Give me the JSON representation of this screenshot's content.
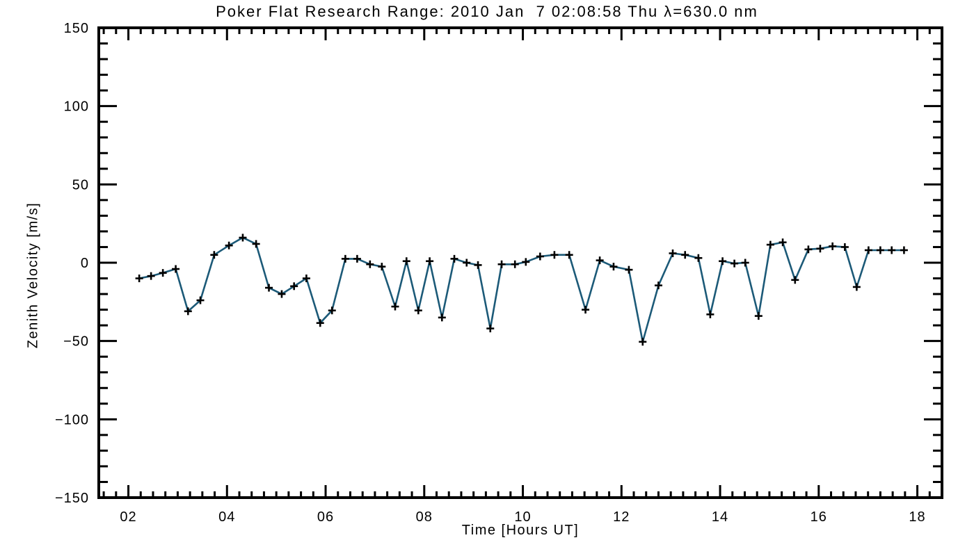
{
  "chart_data": {
    "type": "line",
    "title": "Poker Flat Research Range: 2010 Jan  7 02:08:58 Thu λ=630.0 nm",
    "xlabel": "Time [Hours UT]",
    "ylabel": "Zenith Velocity [m/s]",
    "xlim": [
      1.4,
      18.5
    ],
    "ylim": [
      -150,
      150
    ],
    "x_major_ticks": [
      2,
      4,
      6,
      8,
      10,
      12,
      14,
      16,
      18
    ],
    "x_tick_labels": [
      "02",
      "04",
      "06",
      "08",
      "10",
      "12",
      "14",
      "16",
      "18"
    ],
    "x_minor_step": 0.25,
    "y_major_ticks": [
      -150,
      -100,
      -50,
      0,
      50,
      100,
      150
    ],
    "y_tick_labels": [
      "−150",
      "−100",
      "−50",
      "0",
      "50",
      "100",
      "150"
    ],
    "y_minor_step": 10,
    "grid": false,
    "legend": "none",
    "marker": "plus",
    "line_color": "#1c5a78",
    "marker_color": "#000000",
    "axis_color": "#000000",
    "background": "#ffffff",
    "x": [
      2.22,
      2.46,
      2.7,
      2.96,
      3.21,
      3.46,
      3.74,
      4.04,
      4.32,
      4.59,
      4.85,
      5.11,
      5.36,
      5.61,
      5.89,
      6.13,
      6.4,
      6.64,
      6.9,
      7.14,
      7.41,
      7.64,
      7.88,
      8.11,
      8.36,
      8.61,
      8.86,
      9.09,
      9.34,
      9.57,
      9.84,
      10.06,
      10.35,
      10.64,
      10.94,
      11.27,
      11.56,
      11.84,
      12.15,
      12.43,
      12.75,
      13.04,
      13.29,
      13.56,
      13.8,
      14.05,
      14.29,
      14.51,
      14.78,
      15.02,
      15.27,
      15.52,
      15.79,
      16.03,
      16.28,
      16.53,
      16.77,
      17.01,
      17.25,
      17.48,
      17.73
    ],
    "y": [
      -10,
      -8.5,
      -6.5,
      -4,
      -31,
      -24,
      5,
      11,
      16,
      12,
      -16,
      -20,
      -15,
      -10,
      -38.5,
      -30.5,
      2.5,
      2.5,
      -1,
      -2.5,
      -28,
      1,
      -30.5,
      1,
      -35,
      2.5,
      0,
      -1.5,
      -42,
      -1,
      -1,
      0.5,
      4,
      5,
      5,
      -30,
      1.5,
      -2.5,
      -4.5,
      -50.5,
      -14.5,
      6,
      5,
      3,
      -33,
      1,
      -0.5,
      0,
      -34,
      11.5,
      13,
      -11,
      8.5,
      9,
      10.5,
      10,
      -15.5,
      8,
      8,
      8,
      8
    ]
  }
}
